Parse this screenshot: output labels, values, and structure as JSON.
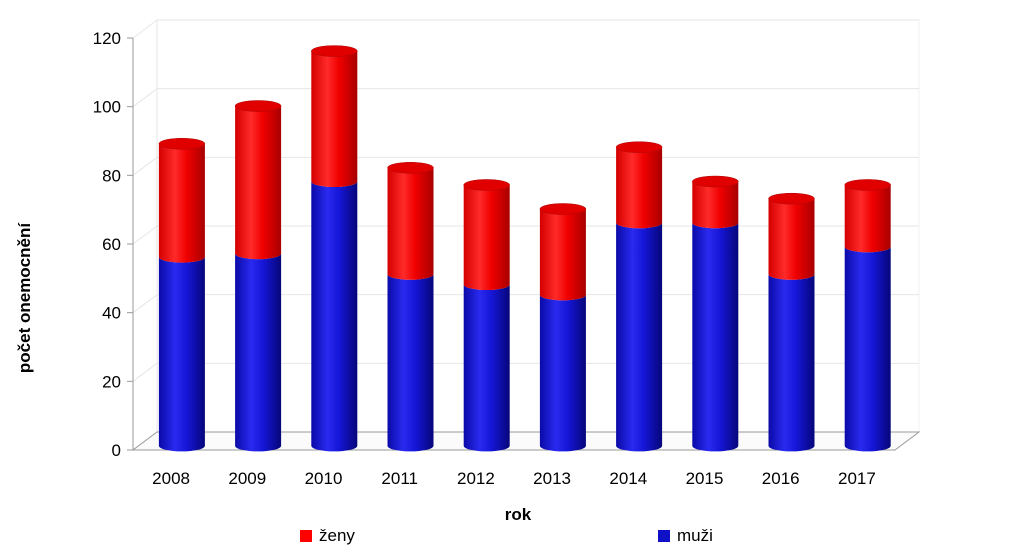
{
  "chart_data": {
    "type": "bar",
    "stacked": true,
    "three_d": true,
    "bar_shape": "cylinder",
    "xlabel": "rok",
    "ylabel": "počet onemocnění",
    "ylim": [
      0,
      120
    ],
    "yticks": [
      0,
      20,
      40,
      60,
      80,
      100,
      120
    ],
    "grid": true,
    "legend_position": "bottom",
    "categories": [
      "2008",
      "2009",
      "2010",
      "2011",
      "2012",
      "2013",
      "2014",
      "2015",
      "2016",
      "2017"
    ],
    "series": [
      {
        "name": "muži",
        "color": "#1010c8",
        "values": [
          55,
          56,
          77,
          50,
          47,
          44,
          65,
          65,
          50,
          58
        ]
      },
      {
        "name": "ženy",
        "color": "#ff0000",
        "values": [
          33,
          43,
          38,
          31,
          29,
          25,
          22,
          12,
          22,
          18
        ]
      }
    ]
  },
  "legend": [
    {
      "label": "ženy",
      "color": "#ff0000"
    },
    {
      "label": "muži",
      "color": "#1010c8"
    }
  ]
}
